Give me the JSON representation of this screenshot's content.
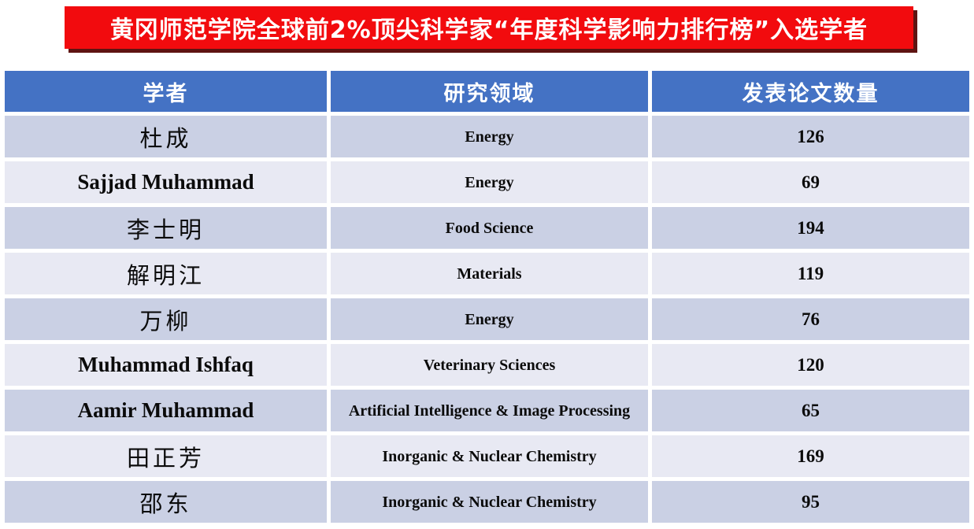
{
  "title": {
    "text": "黄冈师范学院全球前2%顶尖科学家“年度科学影响力排行榜”入选学者"
  },
  "colors": {
    "banner_bg": "#F20B0E",
    "banner_shadow": "#5E1412",
    "header_bg": "#4472C4",
    "row_band_dark": "#CAD0E4",
    "row_band_light": "#E8E9F3",
    "text": "#0b0b0b",
    "header_text": "#FFFFFF"
  },
  "table": {
    "headers": [
      "学者",
      "研究领域",
      "发表论文数量"
    ],
    "rows": [
      {
        "scholar": "杜成",
        "field": "Energy",
        "papers": "126"
      },
      {
        "scholar": "Sajjad Muhammad",
        "field": "Energy",
        "papers": "69"
      },
      {
        "scholar": "李士明",
        "field": "Food Science",
        "papers": "194"
      },
      {
        "scholar": "解明江",
        "field": "Materials",
        "papers": "119"
      },
      {
        "scholar": "万柳",
        "field": "Energy",
        "papers": "76"
      },
      {
        "scholar": "Muhammad Ishfaq",
        "field": "Veterinary Sciences",
        "papers": "120"
      },
      {
        "scholar": "Aamir Muhammad",
        "field": "Artificial Intelligence & Image Processing",
        "papers": "65"
      },
      {
        "scholar": "田正芳",
        "field": "Inorganic & Nuclear Chemistry",
        "papers": "169"
      },
      {
        "scholar": "邵东",
        "field": "Inorganic & Nuclear Chemistry",
        "papers": "95"
      }
    ]
  }
}
